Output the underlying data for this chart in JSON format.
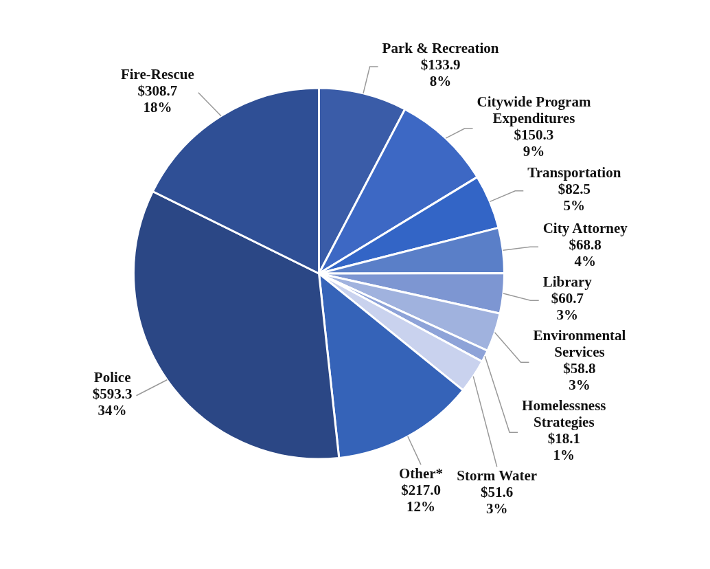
{
  "chart_data": {
    "type": "pie",
    "categories": [
      "Park & Recreation",
      "Citywide Program Expenditures",
      "Transportation",
      "City Attorney",
      "Library",
      "Environmental Services",
      "Homelessness Strategies",
      "Storm Water",
      "Other*",
      "Police",
      "Fire-Rescue"
    ],
    "values": [
      133.9,
      150.3,
      82.5,
      68.8,
      60.7,
      58.8,
      18.1,
      51.6,
      217.0,
      593.3,
      308.7
    ],
    "value_labels": [
      "$133.9\n8%",
      "$150.3\n9%",
      "$82.5\n5%",
      "$68.8\n4%",
      "$60.7\n3%",
      "$58.8\n3%",
      "$18.1\n1%",
      "$51.6\n3%",
      "$217.0\n12%",
      "$593.3\n34%",
      "$308.7\n18%"
    ],
    "colors": [
      "#3a5ca8",
      "#3d68c4",
      "#3365c6",
      "#5a7fc8",
      "#7d96d2",
      "#a0b2de",
      "#8ea3d8",
      "#c9d2ee",
      "#3563b8",
      "#2b4785",
      "#2f4f95"
    ],
    "legend": false
  }
}
